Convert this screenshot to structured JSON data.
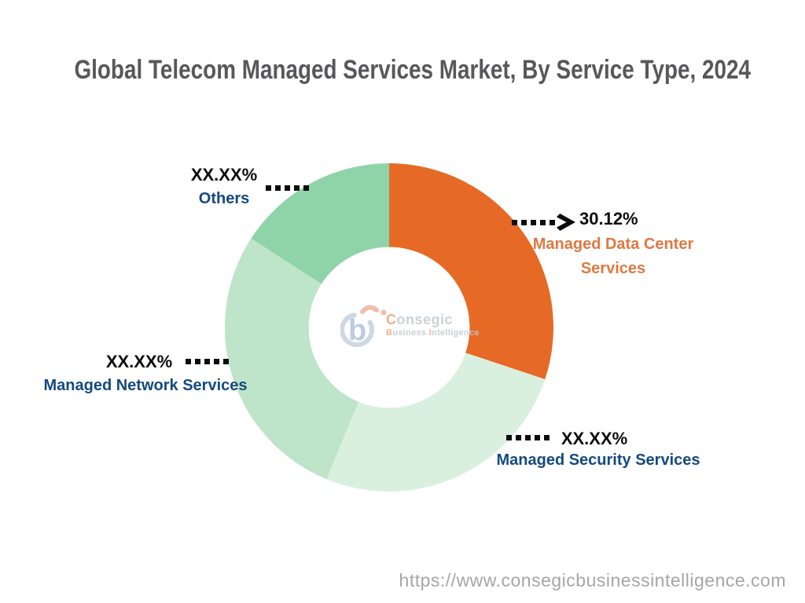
{
  "title": "Global Telecom Managed Services Market, By Service Type, 2024",
  "footer": {
    "url": "https://www.consegicbusinessintelligence.com"
  },
  "logo": {
    "brand_first": "C",
    "brand_rest": "onsegic",
    "tag1_first": "B",
    "tag1_rest": "usiness",
    "tag2_first": "I",
    "tag2_rest": "ntelligence"
  },
  "colors": {
    "title": "#58585A",
    "black_label": "#0D0D0D",
    "navy_label": "#15497E",
    "orange_label": "#DF7840",
    "footer_url": "#A6A6A6"
  },
  "chart_data": {
    "type": "pie",
    "subtype": "donut",
    "title": "Global Telecom Managed Services Market, By Service Type, 2024",
    "year": "2024",
    "direction": "clockwise",
    "start_angle_deg": 0,
    "inner_radius_ratio": 0.49,
    "legend_position": "callouts",
    "segments": [
      {
        "label": "Managed Data Center Services",
        "display_value": "30.12%",
        "value": 30.12,
        "color": "#E66A26",
        "label_color": "#DF7840"
      },
      {
        "label": "Managed Security Services",
        "display_value": "XX.XX%",
        "value": 26.1,
        "color": "#DAF0DE",
        "label_color": "#15497E"
      },
      {
        "label": "Managed Network Services",
        "display_value": "XX.XX%",
        "value": 27.9,
        "color": "#BEE4C9",
        "label_color": "#15497E"
      },
      {
        "label": "Others",
        "display_value": "XX.XX%",
        "value": 15.88,
        "color": "#8FD4A9",
        "label_color": "#15497E"
      }
    ]
  }
}
